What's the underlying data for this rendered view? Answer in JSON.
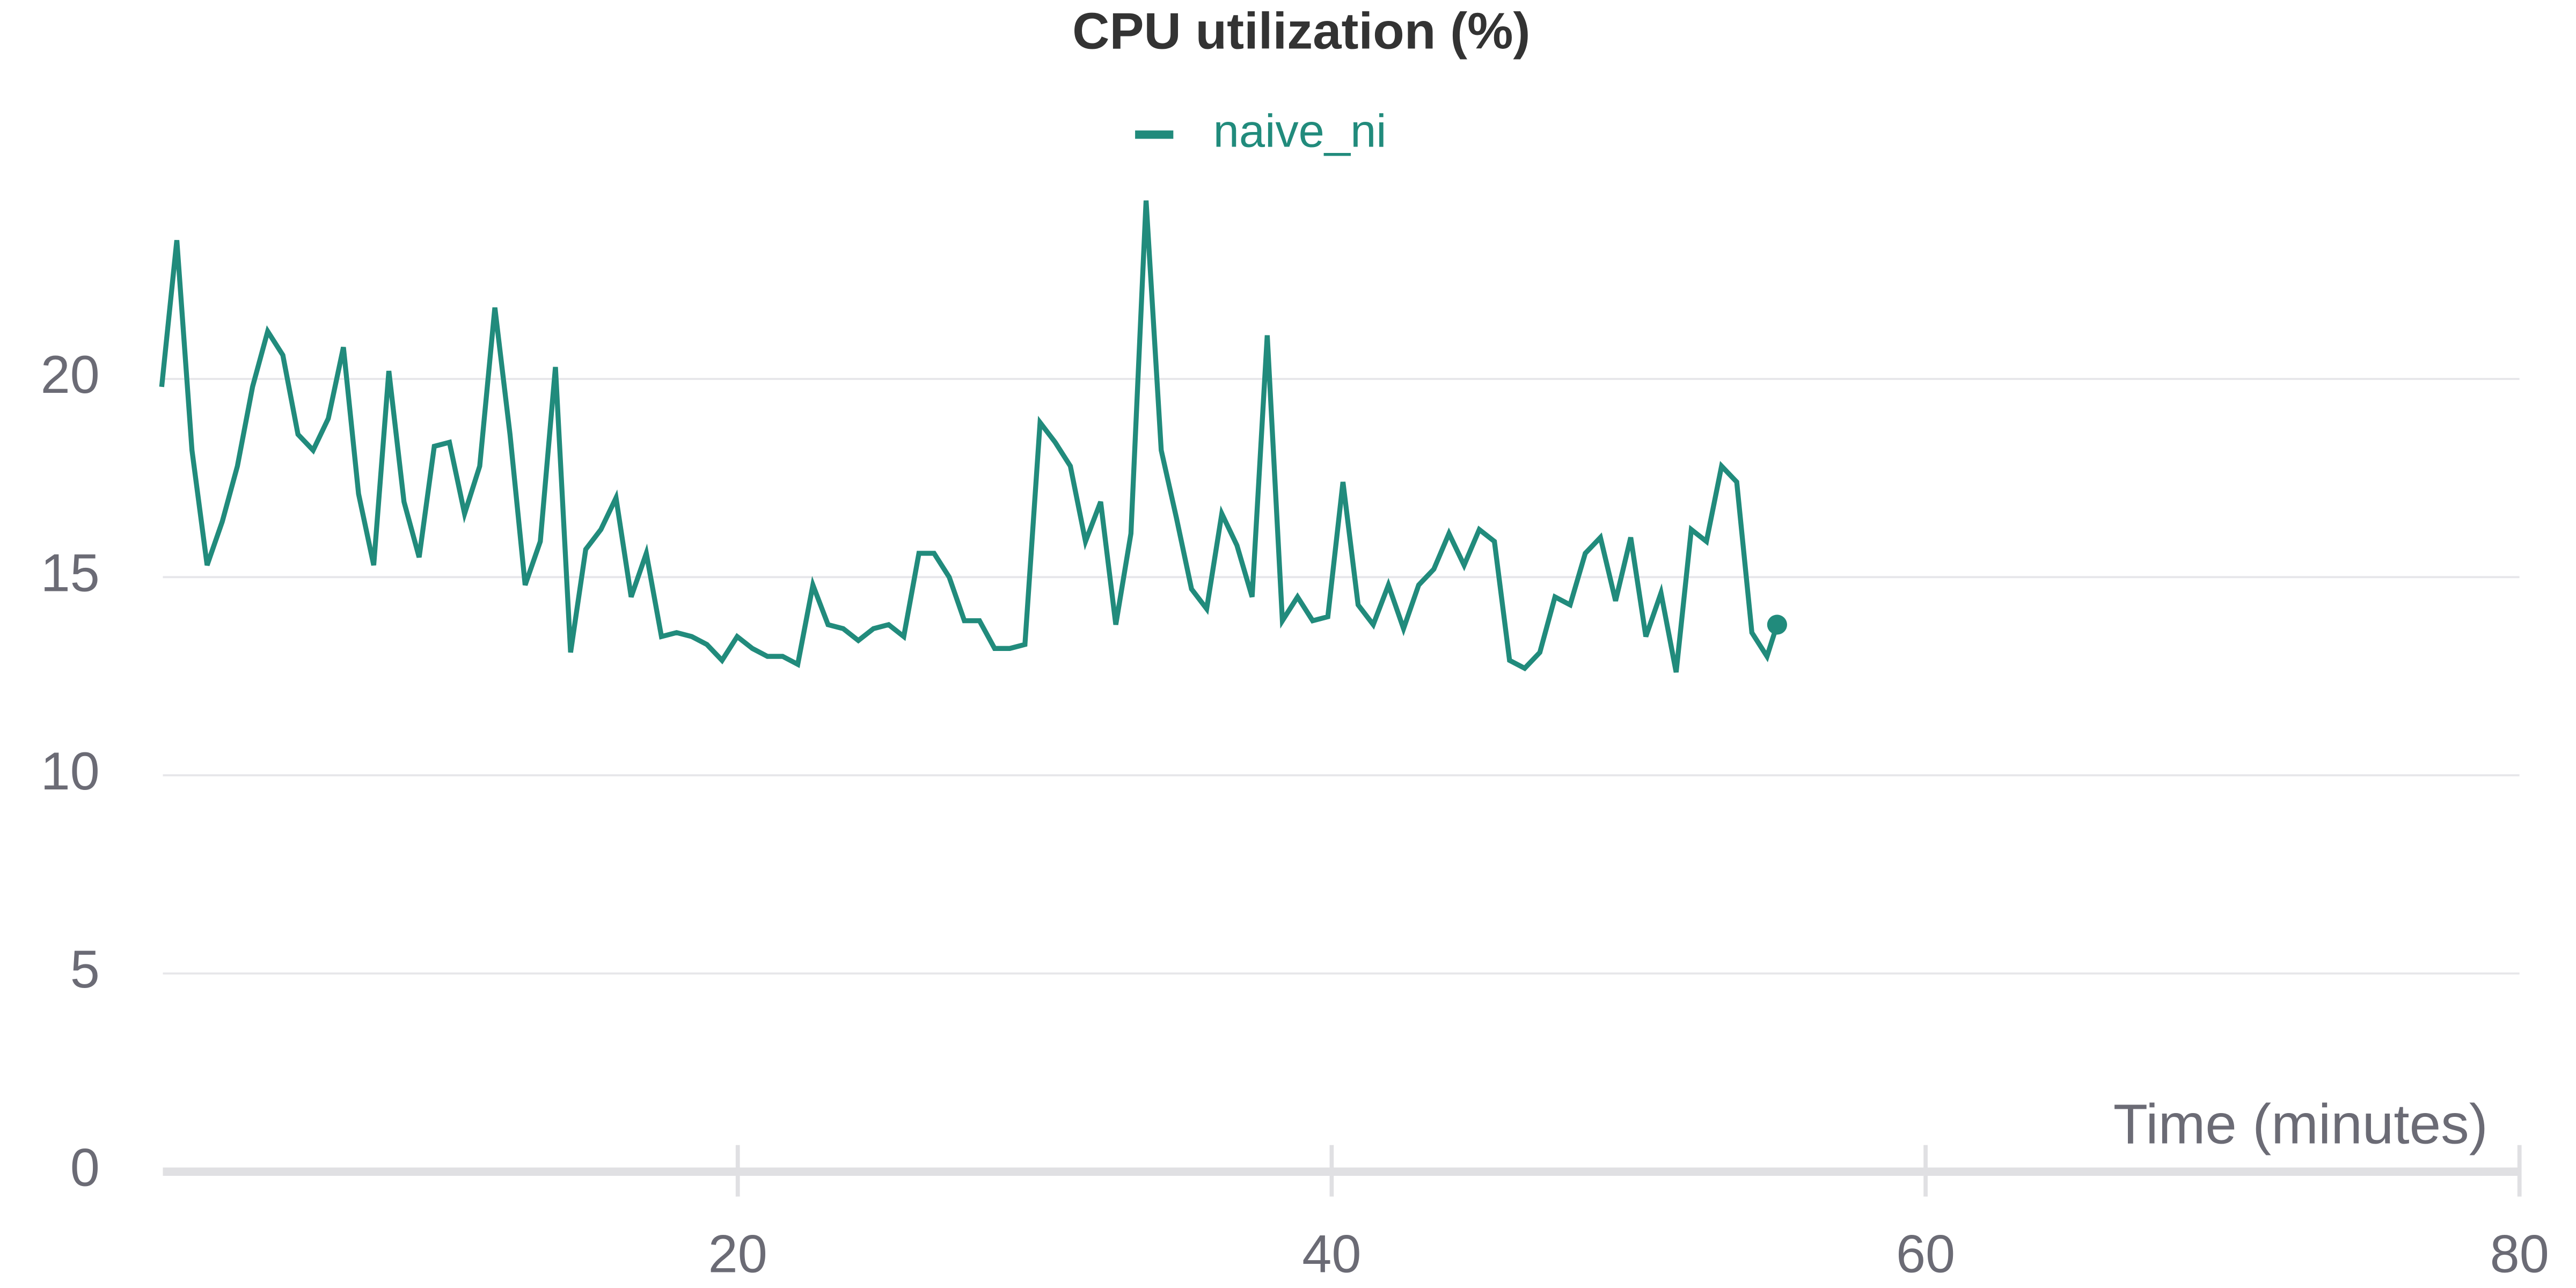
{
  "chart_data": {
    "type": "line",
    "title": "CPU utilization (%)",
    "x_label": "Time (minutes)",
    "x": [
      0.6,
      1.11,
      1.62,
      2.13,
      2.64,
      3.15,
      3.66,
      4.17,
      4.68,
      5.19,
      5.7,
      6.21,
      6.72,
      7.23,
      7.74,
      8.25,
      8.76,
      9.27,
      9.78,
      10.29,
      10.8,
      11.31,
      11.82,
      12.33,
      12.84,
      13.35,
      13.86,
      14.37,
      14.88,
      15.39,
      15.9,
      16.41,
      16.92,
      17.43,
      17.94,
      18.45,
      18.96,
      19.47,
      19.98,
      20.49,
      21,
      21.51,
      22.02,
      22.53,
      23.04,
      23.55,
      24.06,
      24.57,
      25.08,
      25.59,
      26.1,
      26.61,
      27.12,
      27.63,
      28.14,
      28.65,
      29.16,
      29.67,
      30.18,
      30.69,
      31.2,
      31.71,
      32.22,
      32.73,
      33.24,
      33.75,
      34.26,
      34.77,
      35.28,
      35.79,
      36.3,
      36.81,
      37.32,
      37.83,
      38.34,
      38.85,
      39.36,
      39.87,
      40.38,
      40.89,
      41.4,
      41.91,
      42.42,
      42.93,
      43.44,
      43.95,
      44.46,
      44.97,
      45.48,
      45.99,
      46.5,
      47.01,
      47.52,
      48.03,
      48.54,
      49.05,
      49.56,
      50.07,
      50.58,
      51.09,
      51.6,
      52.11,
      52.62,
      53.13,
      53.64,
      54.15,
      54.66,
      55.0
    ],
    "series": [
      {
        "name": "naive_ni",
        "color": "#218b7c",
        "values": [
          19.8,
          23.5,
          18.2,
          15.3,
          16.4,
          17.8,
          19.8,
          21.2,
          20.6,
          18.6,
          18.2,
          19.0,
          20.8,
          17.1,
          15.3,
          20.2,
          16.9,
          15.5,
          18.3,
          18.4,
          16.6,
          17.8,
          21.8,
          18.6,
          14.8,
          15.9,
          20.3,
          13.1,
          15.7,
          16.2,
          17.0,
          14.5,
          15.6,
          13.5,
          13.6,
          13.5,
          13.3,
          12.9,
          13.5,
          13.2,
          13.0,
          13.0,
          12.8,
          14.8,
          13.8,
          13.7,
          13.4,
          13.7,
          13.8,
          13.5,
          15.6,
          15.6,
          15.0,
          13.9,
          13.9,
          13.2,
          13.2,
          13.3,
          18.9,
          18.4,
          17.8,
          15.9,
          16.9,
          13.8,
          16.1,
          24.5,
          18.2,
          16.5,
          14.7,
          14.2,
          16.6,
          15.8,
          14.5,
          21.1,
          13.9,
          14.5,
          13.9,
          14.0,
          17.4,
          14.3,
          13.8,
          14.8,
          13.7,
          14.8,
          15.2,
          16.1,
          15.3,
          16.2,
          15.9,
          12.9,
          12.7,
          13.1,
          14.5,
          14.3,
          15.6,
          16.0,
          14.4,
          16.0,
          13.5,
          14.6,
          12.6,
          16.2,
          15.9,
          17.8,
          17.4,
          13.6,
          13.0,
          13.8
        ]
      }
    ],
    "xlim": [
      0.64,
      80
    ],
    "ylim": [
      0,
      25
    ],
    "xticks": [
      20,
      40,
      60,
      80
    ],
    "yticks": [
      0,
      5,
      10,
      15,
      20
    ],
    "grid": true,
    "legend": "top"
  }
}
